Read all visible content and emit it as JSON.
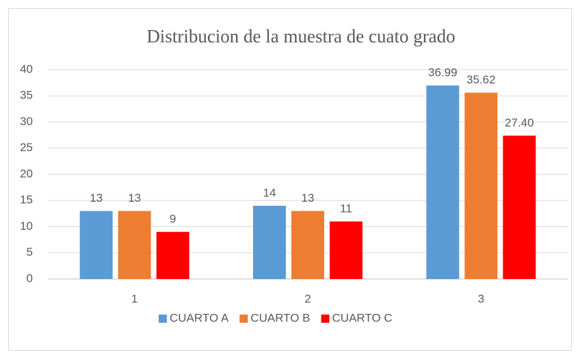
{
  "chart_data": {
    "type": "bar",
    "title": "Distribucion de la muestra de cuato grado",
    "categories": [
      "1",
      "2",
      "3"
    ],
    "series": [
      {
        "name": "CUARTO A",
        "color": "#5b9bd5",
        "values": [
          13,
          14,
          36.99
        ],
        "value_labels": [
          "13",
          "14",
          "36.99"
        ]
      },
      {
        "name": "CUARTO B",
        "color": "#ed7d31",
        "values": [
          13,
          13,
          35.62
        ],
        "value_labels": [
          "13",
          "13",
          "35.62"
        ]
      },
      {
        "name": "CUARTO C",
        "color": "#ff0000",
        "values": [
          9,
          11,
          27.4
        ],
        "value_labels": [
          "9",
          "11",
          "27.40"
        ]
      }
    ],
    "ylim": [
      0,
      40
    ],
    "yticks": [
      0,
      5,
      10,
      15,
      20,
      25,
      30,
      35,
      40
    ],
    "grid": true,
    "legend": "bottom"
  }
}
